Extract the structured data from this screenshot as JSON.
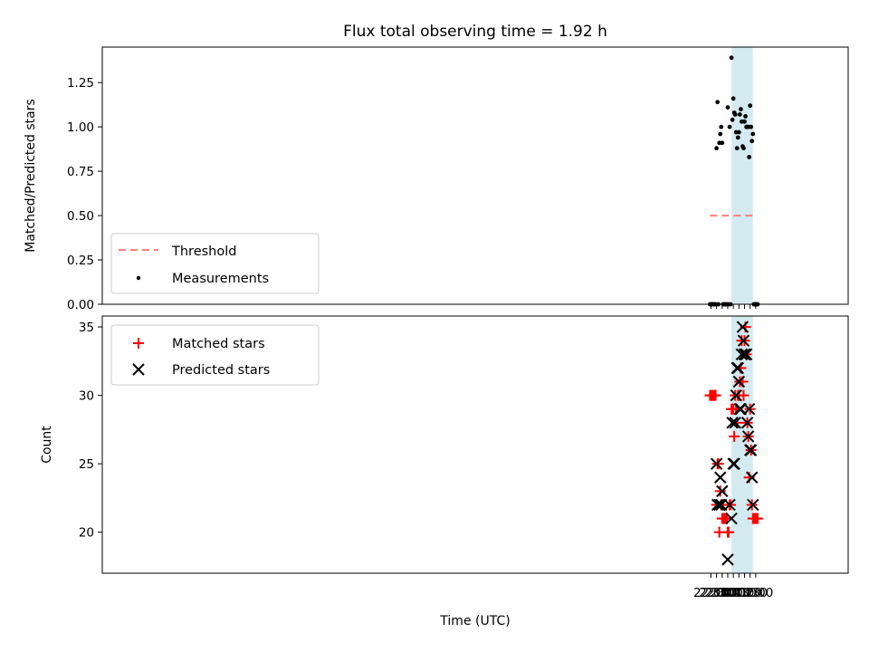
{
  "chart_data": [
    {
      "type": "scatter",
      "title": "Flux total observing time = 1.92 h",
      "ylabel": "Matched/Predicted stars",
      "xlabel": "",
      "x_unit": "minutes since 00:00 UTC",
      "xlim": [
        -1945,
        2056
      ],
      "ylim": [
        0.0,
        1.45
      ],
      "yticks": [
        0.0,
        0.25,
        0.5,
        0.75,
        1.0,
        1.25
      ],
      "ytick_labels": [
        "0.00",
        "0.25",
        "0.50",
        "0.75",
        "1.00",
        "1.25"
      ],
      "highlight_span": {
        "from": 1430,
        "to": 1545,
        "color": "#d3eaf0"
      },
      "threshold": {
        "name": "Threshold",
        "value": 0.5,
        "x_from": 1315,
        "x_to": 1560,
        "color": "#ff7f7f",
        "style": "dashed"
      },
      "legend": {
        "placement": "lower-left",
        "entries": [
          {
            "label": "Threshold",
            "marker": "dashed-line",
            "color": "#ff7f7f"
          },
          {
            "label": "Measurements",
            "marker": "dot",
            "color": "#000000"
          }
        ]
      },
      "series": [
        {
          "name": "Measurements",
          "color": "#000000",
          "marker": "dot",
          "points": [
            [
              1315,
              0
            ],
            [
              1320,
              0
            ],
            [
              1325,
              0
            ],
            [
              1330,
              0
            ],
            [
              1335,
              0
            ],
            [
              1340,
              0
            ],
            [
              1345,
              0
            ],
            [
              1350,
              0.88
            ],
            [
              1355,
              1.14
            ],
            [
              1360,
              0
            ],
            [
              1365,
              0.91
            ],
            [
              1370,
              0.96
            ],
            [
              1375,
              1.0
            ],
            [
              1380,
              0.91
            ],
            [
              1385,
              0
            ],
            [
              1390,
              0
            ],
            [
              1395,
              0
            ],
            [
              1400,
              0
            ],
            [
              1405,
              0
            ],
            [
              1410,
              1.11
            ],
            [
              1415,
              0
            ],
            [
              1420,
              1.0
            ],
            [
              1425,
              0
            ],
            [
              1430,
              1.39
            ],
            [
              1435,
              1.04
            ],
            [
              1440,
              1.16
            ],
            [
              1445,
              1.08
            ],
            [
              1450,
              1.07
            ],
            [
              1455,
              0.97
            ],
            [
              1460,
              0.88
            ],
            [
              1465,
              0.94
            ],
            [
              1470,
              0.97
            ],
            [
              1475,
              1.07
            ],
            [
              1480,
              1.1
            ],
            [
              1485,
              1.03
            ],
            [
              1490,
              0.89
            ],
            [
              1495,
              0.88
            ],
            [
              1500,
              1.03
            ],
            [
              1505,
              1.06
            ],
            [
              1510,
              1.0
            ],
            [
              1515,
              1.0
            ],
            [
              1520,
              1.0
            ],
            [
              1525,
              0.83
            ],
            [
              1530,
              1.12
            ],
            [
              1535,
              1.0
            ],
            [
              1540,
              0.92
            ],
            [
              1545,
              0.96
            ],
            [
              1550,
              0
            ],
            [
              1555,
              0
            ],
            [
              1560,
              0
            ],
            [
              1565,
              0
            ],
            [
              1570,
              0
            ]
          ]
        }
      ]
    },
    {
      "type": "scatter",
      "title": "",
      "ylabel": "Count",
      "xlabel": "Time (UTC)",
      "x_unit": "minutes since 00:00 UTC",
      "xlim": [
        -1945,
        2056
      ],
      "ylim": [
        17,
        35.8
      ],
      "yticks": [
        20,
        25,
        30,
        35
      ],
      "ytick_labels": [
        "20",
        "25",
        "30",
        "35"
      ],
      "xticks": [
        1320,
        1350,
        1380,
        1410,
        1440,
        1470,
        1500,
        1530,
        1560
      ],
      "xtick_labels": [
        "22:00",
        "22:30",
        "23:00",
        "23:30",
        "00:00",
        "00:30",
        "01:00",
        "01:30",
        "02:00"
      ],
      "highlight_span": {
        "from": 1430,
        "to": 1545,
        "color": "#d3eaf0"
      },
      "legend": {
        "placement": "top-left",
        "entries": [
          {
            "label": "Matched stars",
            "marker": "plus",
            "color": "#ff0000"
          },
          {
            "label": "Predicted stars",
            "marker": "x",
            "color": "#000000"
          }
        ]
      },
      "series": [
        {
          "name": "Matched stars",
          "color": "#ff0000",
          "marker": "plus",
          "points": [
            [
              1315,
              30
            ],
            [
              1320,
              30
            ],
            [
              1325,
              30
            ],
            [
              1330,
              30
            ],
            [
              1335,
              30
            ],
            [
              1340,
              30
            ],
            [
              1345,
              30
            ],
            [
              1350,
              22
            ],
            [
              1355,
              25
            ],
            [
              1360,
              25
            ],
            [
              1365,
              20
            ],
            [
              1370,
              23
            ],
            [
              1375,
              22
            ],
            [
              1380,
              21
            ],
            [
              1385,
              21
            ],
            [
              1390,
              21
            ],
            [
              1395,
              21
            ],
            [
              1400,
              21
            ],
            [
              1405,
              21
            ],
            [
              1410,
              20
            ],
            [
              1415,
              20
            ],
            [
              1420,
              22
            ],
            [
              1425,
              22
            ],
            [
              1430,
              29
            ],
            [
              1435,
              29
            ],
            [
              1440,
              29
            ],
            [
              1445,
              27
            ],
            [
              1450,
              30
            ],
            [
              1455,
              29
            ],
            [
              1460,
              28
            ],
            [
              1465,
              30
            ],
            [
              1470,
              30
            ],
            [
              1475,
              31
            ],
            [
              1480,
              32
            ],
            [
              1485,
              34
            ],
            [
              1490,
              31
            ],
            [
              1495,
              30
            ],
            [
              1500,
              34
            ],
            [
              1505,
              35
            ],
            [
              1510,
              33
            ],
            [
              1515,
              28
            ],
            [
              1520,
              27
            ],
            [
              1525,
              24
            ],
            [
              1530,
              29
            ],
            [
              1535,
              26
            ],
            [
              1540,
              22
            ],
            [
              1545,
              21
            ],
            [
              1550,
              21
            ],
            [
              1555,
              21
            ],
            [
              1560,
              21
            ],
            [
              1565,
              21
            ],
            [
              1570,
              21
            ]
          ]
        },
        {
          "name": "Predicted stars",
          "color": "#000000",
          "marker": "x",
          "points": [
            [
              1350,
              25
            ],
            [
              1355,
              22
            ],
            [
              1365,
              22
            ],
            [
              1370,
              24
            ],
            [
              1375,
              22
            ],
            [
              1380,
              23
            ],
            [
              1410,
              18
            ],
            [
              1420,
              22
            ],
            [
              1430,
              21
            ],
            [
              1435,
              28
            ],
            [
              1440,
              25
            ],
            [
              1445,
              25
            ],
            [
              1450,
              28
            ],
            [
              1455,
              30
            ],
            [
              1460,
              32
            ],
            [
              1465,
              32
            ],
            [
              1470,
              31
            ],
            [
              1475,
              29
            ],
            [
              1480,
              29
            ],
            [
              1485,
              33
            ],
            [
              1490,
              35
            ],
            [
              1495,
              34
            ],
            [
              1500,
              33
            ],
            [
              1505,
              33
            ],
            [
              1510,
              33
            ],
            [
              1515,
              28
            ],
            [
              1520,
              27
            ],
            [
              1525,
              29
            ],
            [
              1530,
              26
            ],
            [
              1535,
              26
            ],
            [
              1540,
              24
            ],
            [
              1545,
              22
            ]
          ]
        }
      ]
    }
  ]
}
